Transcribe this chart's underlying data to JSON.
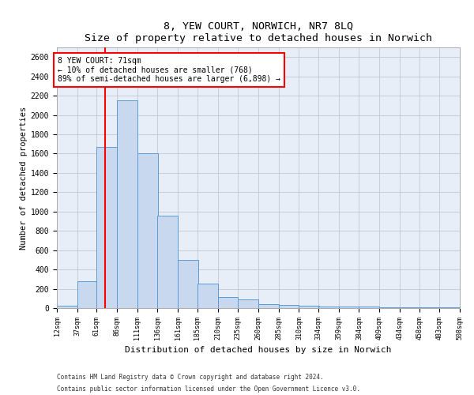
{
  "title": "8, YEW COURT, NORWICH, NR7 8LQ",
  "subtitle": "Size of property relative to detached houses in Norwich",
  "xlabel": "Distribution of detached houses by size in Norwich",
  "ylabel": "Number of detached properties",
  "footnote1": "Contains HM Land Registry data © Crown copyright and database right 2024.",
  "footnote2": "Contains public sector information licensed under the Open Government Licence v3.0.",
  "annotation_line1": "8 YEW COURT: 71sqm",
  "annotation_line2": "← 10% of detached houses are smaller (768)",
  "annotation_line3": "89% of semi-detached houses are larger (6,898) →",
  "bar_color": "#c8d9ef",
  "bar_edge_color": "#5b9bd5",
  "vline_color": "#ff0000",
  "vline_x": 71,
  "ylim": [
    0,
    2700
  ],
  "bins": [
    12,
    37,
    61,
    86,
    111,
    136,
    161,
    185,
    210,
    235,
    260,
    285,
    310,
    334,
    359,
    384,
    409,
    434,
    458,
    483,
    508
  ],
  "bin_labels": [
    "12sqm",
    "37sqm",
    "61sqm",
    "86sqm",
    "111sqm",
    "136sqm",
    "161sqm",
    "185sqm",
    "210sqm",
    "235sqm",
    "260sqm",
    "285sqm",
    "310sqm",
    "334sqm",
    "359sqm",
    "384sqm",
    "409sqm",
    "434sqm",
    "458sqm",
    "483sqm",
    "508sqm"
  ],
  "values": [
    25,
    280,
    1670,
    2150,
    1600,
    960,
    500,
    250,
    115,
    90,
    40,
    35,
    25,
    18,
    15,
    15,
    12,
    5,
    12,
    5
  ],
  "yticks": [
    0,
    200,
    400,
    600,
    800,
    1000,
    1200,
    1400,
    1600,
    1800,
    2000,
    2200,
    2400,
    2600
  ],
  "figsize": [
    6.0,
    5.0
  ],
  "dpi": 100
}
